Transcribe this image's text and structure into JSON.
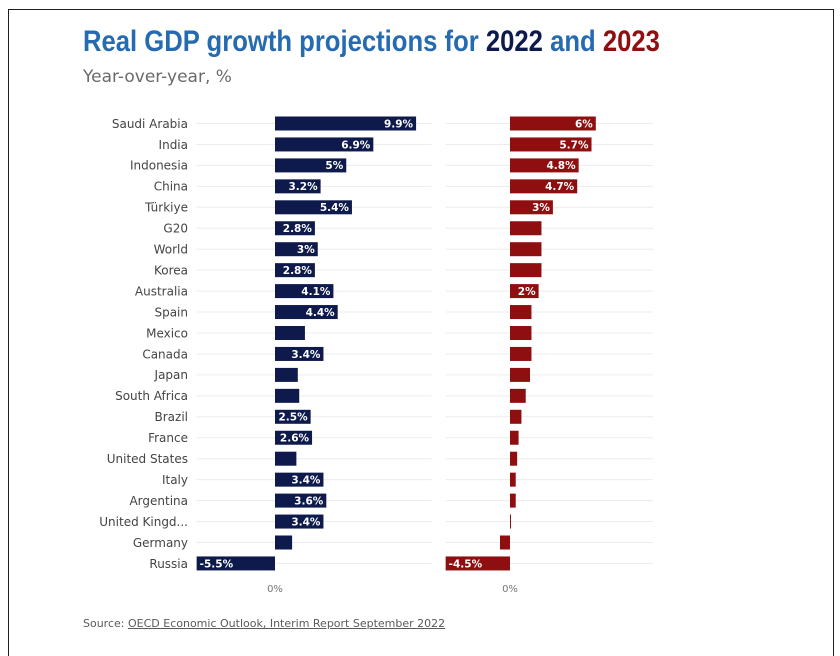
{
  "chart_data": {
    "type": "bar",
    "orientation": "horizontal",
    "title": [
      "Real GDP growth projections for",
      "2022",
      "and",
      "2023"
    ],
    "title_color": "#266bb0",
    "subtitle": "Year-over-year, %",
    "categories": [
      "Saudi Arabia",
      "India",
      "Indonesia",
      "China",
      "Türkiye",
      "G20",
      "World",
      "Korea",
      "Australia",
      "Spain",
      "Mexico",
      "Canada",
      "Japan",
      "South Africa",
      "Brazil",
      "France",
      "United States",
      "Italy",
      "Argentina",
      "United Kingd...",
      "Germany",
      "Russia"
    ],
    "series": [
      {
        "name": "2022",
        "color": "#0e1a4b",
        "values": [
          9.9,
          6.9,
          5.0,
          3.2,
          5.4,
          2.8,
          3.0,
          2.8,
          4.1,
          4.4,
          2.1,
          3.4,
          1.6,
          1.7,
          2.5,
          2.6,
          1.5,
          3.4,
          3.6,
          3.4,
          1.2,
          -5.5
        ],
        "data_labels": [
          "9.9%",
          "6.9%",
          "5%",
          "3.2%",
          "5.4%",
          "2.8%",
          "3%",
          "2.8%",
          "4.1%",
          "4.4%",
          null,
          "3.4%",
          null,
          null,
          "2.5%",
          "2.6%",
          null,
          "3.4%",
          "3.6%",
          "3.4%",
          null,
          "-5.5%"
        ],
        "xlim": [
          -5.5,
          11
        ],
        "xticks": [
          0
        ],
        "xtick_labels": [
          "0%"
        ]
      },
      {
        "name": "2023",
        "color": "#8f0e10",
        "values": [
          6.0,
          5.7,
          4.8,
          4.7,
          3.0,
          2.2,
          2.2,
          2.2,
          2.0,
          1.5,
          1.5,
          1.5,
          1.4,
          1.1,
          0.8,
          0.6,
          0.5,
          0.4,
          0.4,
          0.0,
          -0.7,
          -4.5
        ],
        "data_labels": [
          "6%",
          "5.7%",
          "4.8%",
          "4.7%",
          "3%",
          null,
          null,
          null,
          "2%",
          null,
          null,
          null,
          null,
          null,
          null,
          null,
          null,
          null,
          null,
          null,
          null,
          "-4.5%"
        ],
        "xlim": [
          -4.5,
          10
        ],
        "xticks": [
          0
        ],
        "xtick_labels": [
          "0%"
        ]
      }
    ],
    "grid": true,
    "source_label": "Source:",
    "source_text": "OECD Economic Outlook, Interim Report September 2022"
  }
}
